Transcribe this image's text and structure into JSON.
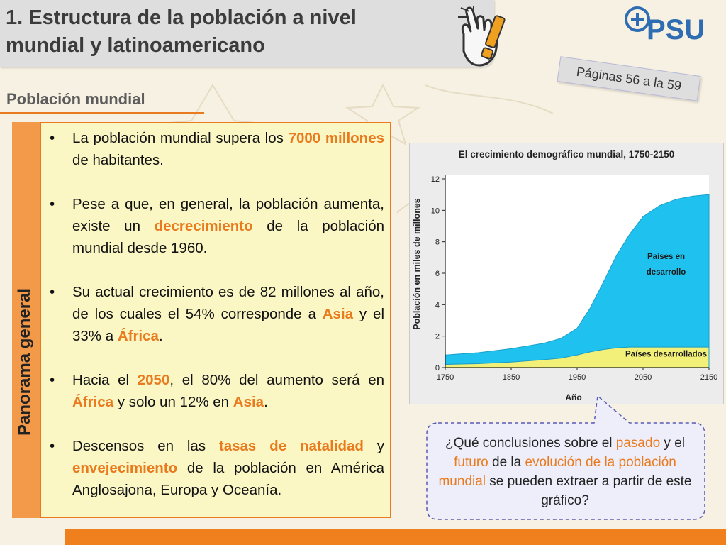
{
  "title": {
    "line1": "1. Estructura de la población a nivel",
    "line2": "mundial y latinoamericano"
  },
  "logo": {
    "text": "PSU"
  },
  "pages_note": "Páginas 56 a la 59",
  "section_heading": "Población mundial",
  "side_tab_label": "Panorama general",
  "bullets": [
    [
      {
        "t": "La población mundial supera los "
      },
      {
        "t": "7000 millones",
        "hl": true
      },
      {
        "t": " de habitantes."
      }
    ],
    [
      {
        "t": "Pese a que, en general, la población aumenta, existe un "
      },
      {
        "t": "decrecimiento",
        "hl": true
      },
      {
        "t": " de la población mundial desde 1960."
      }
    ],
    [
      {
        "t": "Su actual crecimiento es de 82 millones al año, de los cuales el 54% corresponde a "
      },
      {
        "t": "Asia",
        "hl": true
      },
      {
        "t": " y el 33% a "
      },
      {
        "t": "África",
        "hl": true
      },
      {
        "t": "."
      }
    ],
    [
      {
        "t": "Hacia el "
      },
      {
        "t": "2050",
        "hl": true
      },
      {
        "t": ", el 80% del aumento será en "
      },
      {
        "t": "África",
        "hl": true
      },
      {
        "t": " y solo un 12% en "
      },
      {
        "t": "Asia",
        "hl": true
      },
      {
        "t": "."
      }
    ],
    [
      {
        "t": "Descensos en las "
      },
      {
        "t": "tasas de natalidad",
        "hl": true
      },
      {
        "t": " y "
      },
      {
        "t": "envejecimiento",
        "hl": true
      },
      {
        "t": " de la población en América Anglosajona, Europa y Oceanía."
      }
    ]
  ],
  "callout": [
    {
      "t": "¿Qué conclusiones sobre el "
    },
    {
      "t": "pasado",
      "hl": true
    },
    {
      "t": " y el "
    },
    {
      "t": "futuro",
      "hl": true
    },
    {
      "t": " de la "
    },
    {
      "t": "evolución de la población mundial",
      "hl": true
    },
    {
      "t": " se pueden extraer a partir de este gráfico?"
    }
  ],
  "colors": {
    "accent": "#e97a1e",
    "developing": "#1fc2ee",
    "developed": "#f3f07a"
  },
  "chart_data": {
    "type": "area",
    "title": "El crecimiento demográfico mundial, 1750-2150",
    "xlabel": "Año",
    "ylabel": "Población en miles de millones",
    "xlim": [
      1750,
      2150
    ],
    "ylim": [
      0,
      12
    ],
    "xticks": [
      "1750",
      "1850",
      "1950",
      "2050",
      "2150"
    ],
    "yticks": [
      "0",
      "2",
      "4",
      "6",
      "8",
      "10",
      "12"
    ],
    "x": [
      1750,
      1800,
      1850,
      1900,
      1925,
      1950,
      1970,
      1990,
      2010,
      2030,
      2050,
      2075,
      2100,
      2125,
      2150
    ],
    "series": [
      {
        "name": "Países desarrollados",
        "values": [
          0.2,
          0.25,
          0.35,
          0.5,
          0.6,
          0.8,
          1.0,
          1.15,
          1.25,
          1.3,
          1.3,
          1.3,
          1.3,
          1.3,
          1.3
        ]
      },
      {
        "name": "Países en desarrollo",
        "values": [
          0.6,
          0.7,
          0.85,
          1.05,
          1.25,
          1.7,
          2.8,
          4.3,
          5.9,
          7.2,
          8.3,
          9.0,
          9.4,
          9.6,
          9.7
        ]
      }
    ],
    "labels": {
      "developing": "Países en desarrollo",
      "developing_l1": "Países en",
      "developing_l2": "desarrollo",
      "developed": "Países desarrollados"
    }
  }
}
